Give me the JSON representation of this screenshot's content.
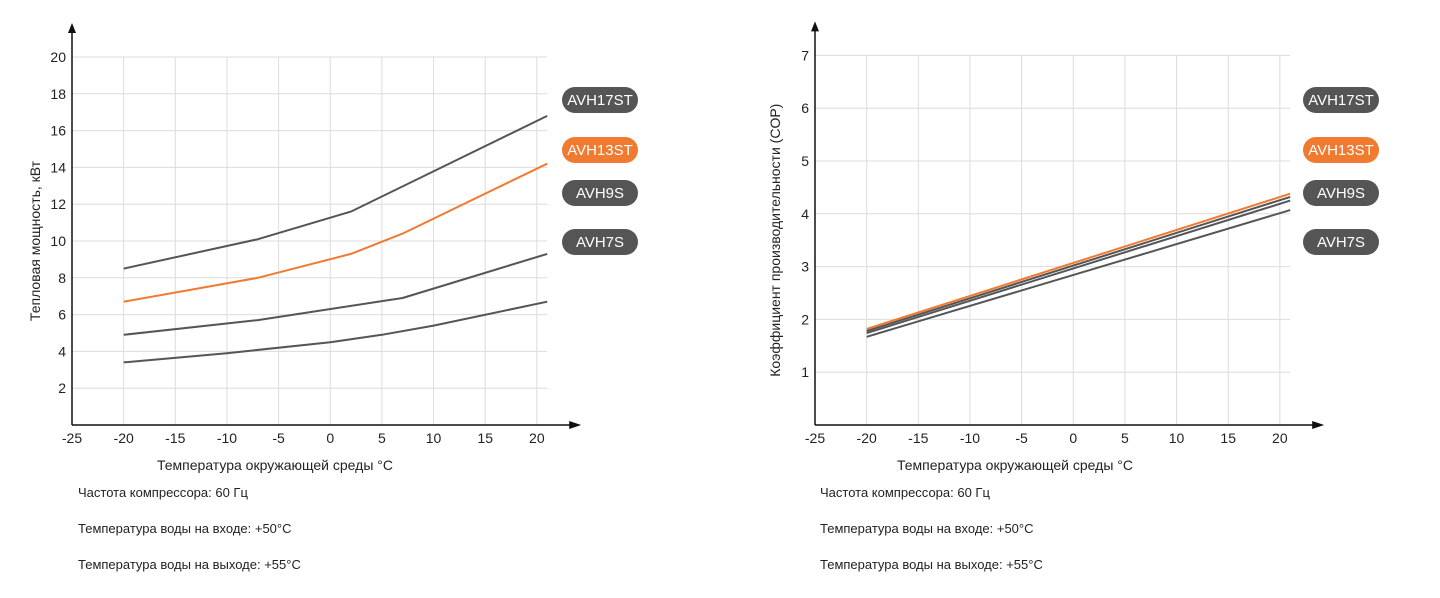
{
  "chart_data": [
    {
      "type": "line",
      "xlabel": "Температура окружающей среды °C",
      "ylabel": "Тепловая мощность, кВт",
      "xlim": [
        -25,
        21
      ],
      "ylim": [
        0,
        20
      ],
      "xticks": [
        -25,
        -20,
        -15,
        -10,
        -5,
        0,
        5,
        10,
        15,
        20
      ],
      "yticks": [
        2,
        4,
        6,
        8,
        10,
        12,
        14,
        16,
        18,
        20
      ],
      "grid": true,
      "legend_position": "right",
      "series": [
        {
          "name": "AVH17ST",
          "color": "#555555",
          "x": [
            -20,
            -7,
            2,
            21
          ],
          "y": [
            8.5,
            10.1,
            11.6,
            16.8
          ]
        },
        {
          "name": "AVH13ST",
          "color": "#f07a30",
          "x": [
            -20,
            -7,
            2,
            7,
            21
          ],
          "y": [
            6.7,
            8.0,
            9.3,
            10.4,
            14.2
          ]
        },
        {
          "name": "AVH9S",
          "color": "#555555",
          "x": [
            -20,
            -7,
            7,
            21
          ],
          "y": [
            4.9,
            5.7,
            6.9,
            9.3
          ]
        },
        {
          "name": "AVH7S",
          "color": "#555555",
          "x": [
            -20,
            -10,
            0,
            5,
            10,
            21
          ],
          "y": [
            3.4,
            3.9,
            4.5,
            4.9,
            5.4,
            6.7
          ]
        }
      ],
      "notes": [
        "Частота компрессора: 60 Гц",
        "Температура воды на входе: +50°С",
        "Температура воды на выходе: +55°С"
      ]
    },
    {
      "type": "line",
      "xlabel": "Температура окружающей среды °C",
      "ylabel": "Коэффициент производительности (COP)",
      "xlim": [
        -25,
        21
      ],
      "ylim": [
        0,
        7
      ],
      "xticks": [
        -25,
        -20,
        -15,
        -10,
        -5,
        0,
        5,
        10,
        15,
        20
      ],
      "yticks": [
        1,
        2,
        3,
        4,
        5,
        6,
        7
      ],
      "grid": true,
      "legend_position": "right",
      "series": [
        {
          "name": "AVH17ST",
          "color": "#555555",
          "x": [
            -20,
            21
          ],
          "y": [
            1.78,
            4.32
          ]
        },
        {
          "name": "AVH13ST",
          "color": "#f07a30",
          "x": [
            -20,
            21
          ],
          "y": [
            1.82,
            4.38
          ]
        },
        {
          "name": "AVH9S",
          "color": "#555555",
          "x": [
            -20,
            21
          ],
          "y": [
            1.74,
            4.25
          ]
        },
        {
          "name": "AVH7S",
          "color": "#555555",
          "x": [
            -20,
            21
          ],
          "y": [
            1.67,
            4.07
          ]
        }
      ],
      "notes": [
        "Частота компрессора: 60 Гц",
        "Температура воды на входе: +50°С",
        "Температура воды на выходе: +55°С"
      ]
    }
  ]
}
